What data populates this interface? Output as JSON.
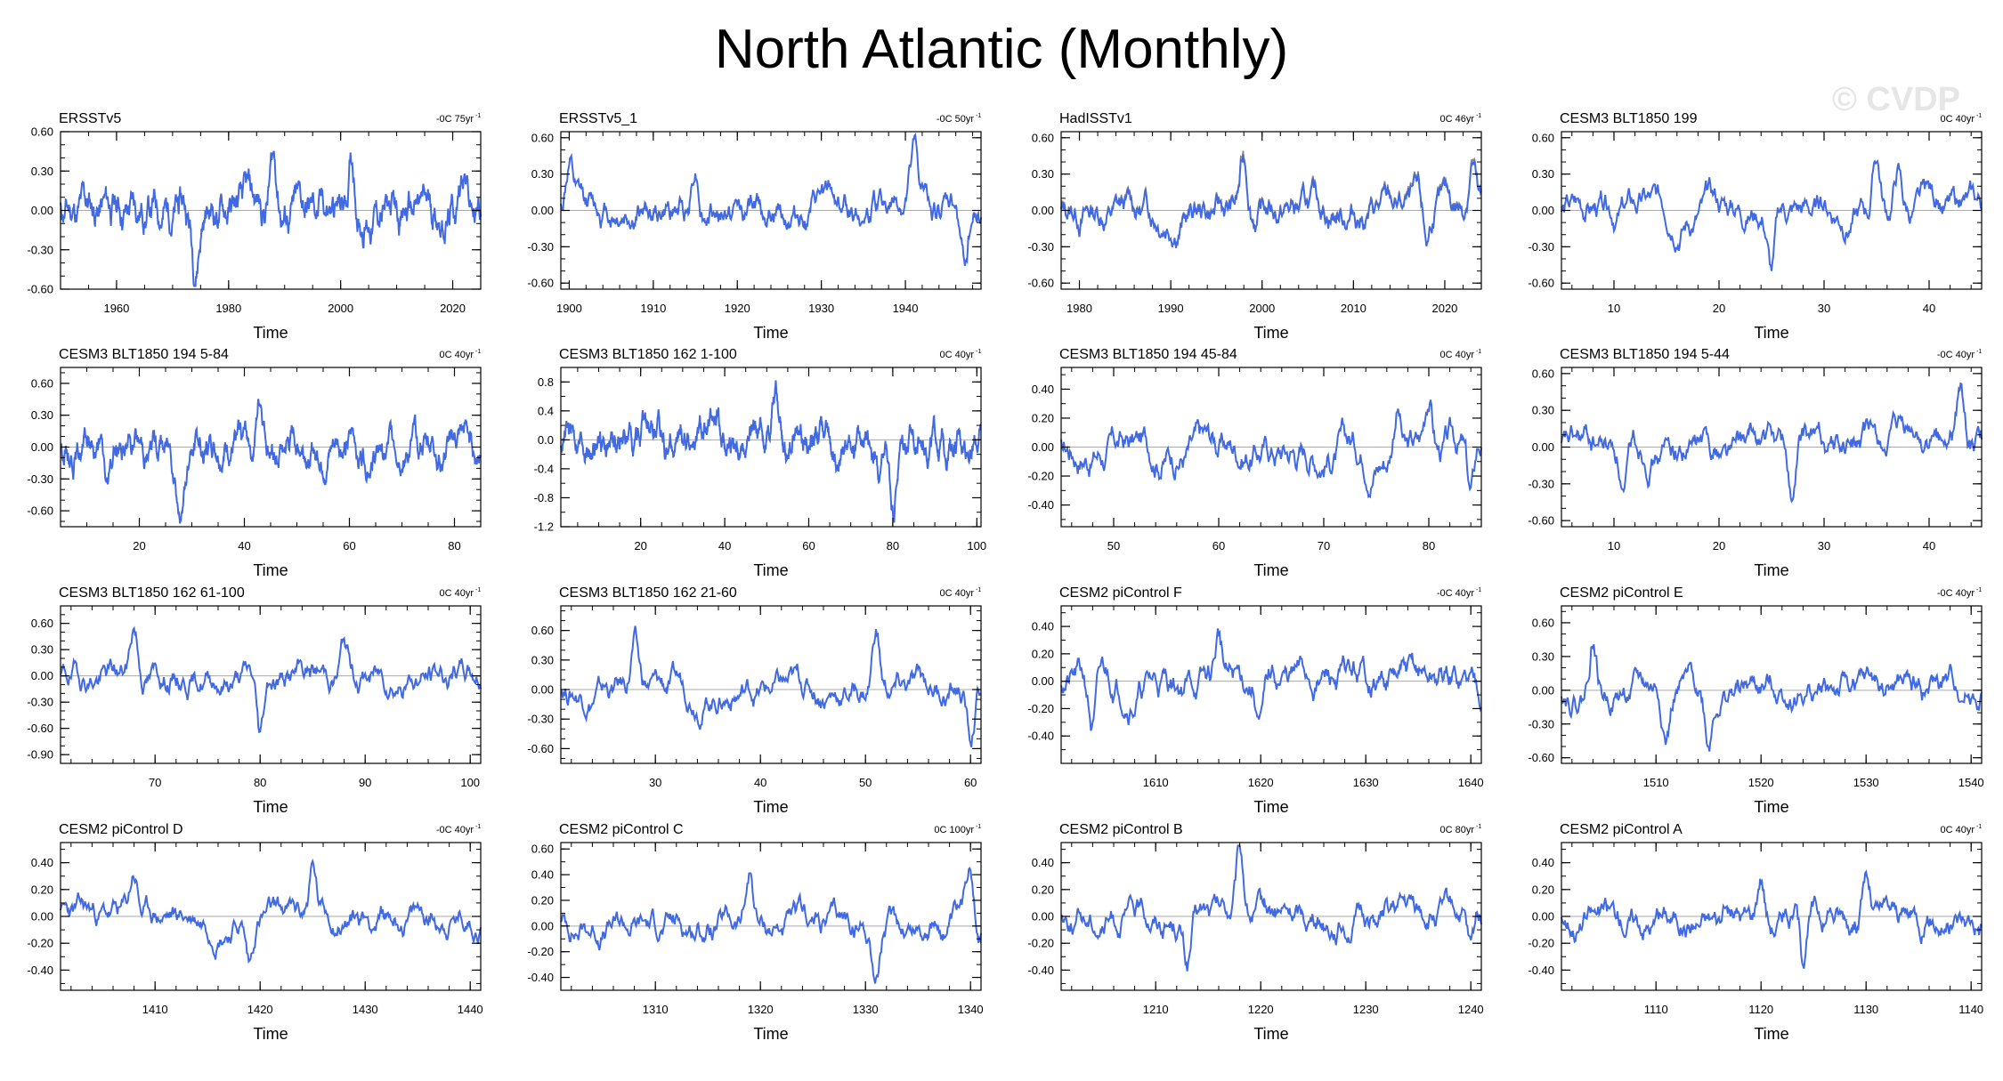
{
  "title": "North Atlantic (Monthly)",
  "watermark": "© CVDP",
  "colors": {
    "line": "#4169E1",
    "zero": "#aaaaaa",
    "overlay": "#888888"
  },
  "chart_data": [
    {
      "type": "line",
      "title": "ERSSTv5",
      "note": "-0C 75yr",
      "xlabel": "Time",
      "xlim": [
        1950,
        2025
      ],
      "xticks": [
        1960,
        1980,
        2000,
        2020
      ],
      "xminor": 5,
      "ylim": [
        -0.6,
        0.6
      ],
      "yticks": [
        "-0.60",
        "-0.30",
        "0.00",
        "0.30",
        "0.60"
      ],
      "yminor": 0.1,
      "amp": 0.2,
      "trend": 0.02,
      "spikes": [
        [
          1974,
          -0.45
        ],
        [
          1988,
          0.45
        ],
        [
          2002,
          0.45
        ],
        [
          2022,
          0.45
        ]
      ],
      "seed": 11
    },
    {
      "type": "line",
      "title": "ERSSTv5_1",
      "note": "-0C 50yr",
      "xlabel": "Time",
      "xlim": [
        1899,
        1949
      ],
      "xticks": [
        1900,
        1910,
        1920,
        1930,
        1940
      ],
      "xminor": 2,
      "ylim": [
        -0.65,
        0.65
      ],
      "yticks": [
        "-0.60",
        "-0.30",
        "0.00",
        "0.30",
        "0.60"
      ],
      "yminor": 0.1,
      "amp": 0.17,
      "trend": 0.0,
      "spikes": [
        [
          1900,
          0.45
        ],
        [
          1915,
          0.5
        ],
        [
          1941,
          0.5
        ],
        [
          1947,
          -0.5
        ]
      ],
      "seed": 12
    },
    {
      "type": "line",
      "title": "HadISSTv1",
      "note": "0C 46yr",
      "xlabel": "Time",
      "xlim": [
        1978,
        2024
      ],
      "xticks": [
        1980,
        1990,
        2000,
        2010,
        2020
      ],
      "xminor": 2,
      "ylim": [
        -0.65,
        0.65
      ],
      "yticks": [
        "-0.60",
        "-0.30",
        "0.00",
        "0.30",
        "0.60"
      ],
      "yminor": 0.1,
      "amp": 0.18,
      "trend": 0.0,
      "spikes": [
        [
          1998,
          0.45
        ],
        [
          2023,
          0.55
        ],
        [
          2018,
          -0.4
        ]
      ],
      "seed": 13,
      "overlay": true
    },
    {
      "type": "line",
      "title": "CESM3 BLT1850 199",
      "note": "0C 40yr",
      "xlabel": "Time",
      "xlim": [
        5,
        45
      ],
      "xticks": [
        10,
        20,
        30,
        40
      ],
      "xminor": 2,
      "ylim": [
        -0.65,
        0.65
      ],
      "yticks": [
        "-0.60",
        "-0.30",
        "0.00",
        "0.30",
        "0.60"
      ],
      "yminor": 0.1,
      "amp": 0.18,
      "trend": 0.0,
      "spikes": [
        [
          25,
          -0.55
        ],
        [
          35,
          0.5
        ],
        [
          37,
          0.4
        ]
      ],
      "seed": 14
    },
    {
      "type": "line",
      "title": "CESM3 BLT1850 194 5-84",
      "note": "0C 40yr",
      "xlabel": "Time",
      "xlim": [
        5,
        85
      ],
      "xticks": [
        20,
        40,
        60,
        80
      ],
      "xminor": 5,
      "ylim": [
        -0.75,
        0.75
      ],
      "yticks": [
        "-0.60",
        "-0.30",
        "0.00",
        "0.30",
        "0.60"
      ],
      "yminor": 0.1,
      "amp": 0.2,
      "trend": 0.0,
      "spikes": [
        [
          28,
          -0.65
        ],
        [
          43,
          0.5
        ],
        [
          14,
          -0.5
        ]
      ],
      "seed": 15
    },
    {
      "type": "line",
      "title": "CESM3 BLT1850 162 1-100",
      "note": "0C 40yr",
      "xlabel": "Time",
      "xlim": [
        1,
        101
      ],
      "xticks": [
        20,
        40,
        60,
        80,
        100
      ],
      "xminor": 5,
      "ylim": [
        -1.2,
        1.0
      ],
      "yticks": [
        "-1.2",
        "-0.8",
        "-0.4",
        "0.0",
        "0.4",
        "0.8"
      ],
      "yminor": 0.2,
      "amp": 0.27,
      "trend": 0.0,
      "spikes": [
        [
          52,
          0.9
        ],
        [
          80,
          -1.05
        ],
        [
          77,
          -0.7
        ]
      ],
      "seed": 16
    },
    {
      "type": "line",
      "title": "CESM3 BLT1850 194 45-84",
      "note": "0C 40yr",
      "xlabel": "Time",
      "xlim": [
        45,
        85
      ],
      "xticks": [
        50,
        60,
        70,
        80
      ],
      "xminor": 2,
      "ylim": [
        -0.55,
        0.55
      ],
      "yticks": [
        "-0.40",
        "-0.20",
        "0.00",
        "0.20",
        "0.40"
      ],
      "yminor": 0.1,
      "amp": 0.17,
      "trend": 0.0,
      "spikes": [
        [
          77,
          0.45
        ],
        [
          80,
          0.45
        ],
        [
          84,
          -0.45
        ]
      ],
      "seed": 17
    },
    {
      "type": "line",
      "title": "CESM3 BLT1850 194 5-44",
      "note": "-0C 40yr",
      "xlabel": "Time",
      "xlim": [
        5,
        45
      ],
      "xticks": [
        10,
        20,
        30,
        40
      ],
      "xminor": 2,
      "ylim": [
        -0.65,
        0.65
      ],
      "yticks": [
        "-0.60",
        "-0.30",
        "0.00",
        "0.30",
        "0.60"
      ],
      "yminor": 0.1,
      "amp": 0.18,
      "trend": 0.0,
      "spikes": [
        [
          43,
          0.5
        ],
        [
          27,
          -0.55
        ],
        [
          11,
          -0.45
        ]
      ],
      "seed": 18
    },
    {
      "type": "line",
      "title": "CESM3 BLT1850 162 61-100",
      "note": "0C 40yr",
      "xlabel": "Time",
      "xlim": [
        61,
        101
      ],
      "xticks": [
        70,
        80,
        90,
        100
      ],
      "xminor": 2,
      "ylim": [
        -1.0,
        0.8
      ],
      "yticks": [
        "-0.90",
        "-0.60",
        "-0.30",
        "0.00",
        "0.30",
        "0.60"
      ],
      "yminor": 0.1,
      "amp": 0.22,
      "trend": 0.0,
      "spikes": [
        [
          68,
          0.65
        ],
        [
          80,
          -0.85
        ],
        [
          88,
          0.45
        ]
      ],
      "seed": 19
    },
    {
      "type": "line",
      "title": "CESM3 BLT1850 162 21-60",
      "note": "0C 40yr",
      "xlabel": "Time",
      "xlim": [
        21,
        61
      ],
      "xticks": [
        30,
        40,
        50,
        60
      ],
      "xminor": 2,
      "ylim": [
        -0.75,
        0.85
      ],
      "yticks": [
        "-0.60",
        "-0.30",
        "0.00",
        "0.30",
        "0.60"
      ],
      "yminor": 0.1,
      "amp": 0.2,
      "trend": 0.0,
      "spikes": [
        [
          51,
          0.75
        ],
        [
          60,
          -0.6
        ],
        [
          28,
          0.55
        ]
      ],
      "seed": 20
    },
    {
      "type": "line",
      "title": "CESM2 piControl F",
      "note": "-0C 40yr",
      "xlabel": "Time",
      "xlim": [
        1601,
        1641
      ],
      "xticks": [
        1610,
        1620,
        1630,
        1640
      ],
      "xminor": 2,
      "ylim": [
        -0.6,
        0.55
      ],
      "yticks": [
        "-0.40",
        "-0.20",
        "0.00",
        "0.20",
        "0.40"
      ],
      "yminor": 0.1,
      "amp": 0.17,
      "trend": 0.0,
      "spikes": [
        [
          1616,
          0.38
        ],
        [
          1604,
          -0.4
        ],
        [
          1620,
          -0.35
        ]
      ],
      "seed": 21
    },
    {
      "type": "line",
      "title": "CESM2 piControl E",
      "note": "-0C 40yr",
      "xlabel": "Time",
      "xlim": [
        1501,
        1541
      ],
      "xticks": [
        1510,
        1520,
        1530,
        1540
      ],
      "xminor": 2,
      "ylim": [
        -0.65,
        0.75
      ],
      "yticks": [
        "-0.60",
        "-0.30",
        "0.00",
        "0.30",
        "0.60"
      ],
      "yminor": 0.1,
      "amp": 0.18,
      "trend": 0.0,
      "spikes": [
        [
          1504,
          0.62
        ],
        [
          1515,
          -0.5
        ],
        [
          1511,
          -0.42
        ]
      ],
      "seed": 22
    },
    {
      "type": "line",
      "title": "CESM2 piControl D",
      "note": "-0C 40yr",
      "xlabel": "Time",
      "xlim": [
        1401,
        1441
      ],
      "xticks": [
        1410,
        1420,
        1430,
        1440
      ],
      "xminor": 2,
      "ylim": [
        -0.55,
        0.55
      ],
      "yticks": [
        "-0.40",
        "-0.20",
        "0.00",
        "0.20",
        "0.40"
      ],
      "yminor": 0.1,
      "amp": 0.14,
      "trend": 0.0,
      "spikes": [
        [
          1425,
          0.42
        ],
        [
          1419,
          -0.4
        ],
        [
          1408,
          0.35
        ]
      ],
      "seed": 23
    },
    {
      "type": "line",
      "title": "CESM2 piControl C",
      "note": "0C 100yr",
      "xlabel": "Time",
      "xlim": [
        1301,
        1341
      ],
      "xticks": [
        1310,
        1320,
        1330,
        1340
      ],
      "xminor": 2,
      "ylim": [
        -0.5,
        0.65
      ],
      "yticks": [
        "-0.40",
        "-0.20",
        "0.00",
        "0.20",
        "0.40",
        "0.60"
      ],
      "yminor": 0.1,
      "amp": 0.15,
      "trend": 0.0,
      "spikes": [
        [
          1340,
          0.55
        ],
        [
          1331,
          -0.42
        ],
        [
          1319,
          0.45
        ]
      ],
      "seed": 24
    },
    {
      "type": "line",
      "title": "CESM2 piControl B",
      "note": "0C 80yr",
      "xlabel": "Time",
      "xlim": [
        1201,
        1241
      ],
      "xticks": [
        1210,
        1220,
        1230,
        1240
      ],
      "xminor": 2,
      "ylim": [
        -0.55,
        0.55
      ],
      "yticks": [
        "-0.40",
        "-0.20",
        "0.00",
        "0.20",
        "0.40"
      ],
      "yminor": 0.1,
      "amp": 0.15,
      "trend": 0.0,
      "spikes": [
        [
          1218,
          0.5
        ],
        [
          1213,
          -0.38
        ],
        [
          1240,
          -0.38
        ]
      ],
      "seed": 25
    },
    {
      "type": "line",
      "title": "CESM2 piControl A",
      "note": "0C 40yr",
      "xlabel": "Time",
      "xlim": [
        1101,
        1141
      ],
      "xticks": [
        1110,
        1120,
        1130,
        1140
      ],
      "xminor": 2,
      "ylim": [
        -0.55,
        0.55
      ],
      "yticks": [
        "-0.40",
        "-0.20",
        "0.00",
        "0.20",
        "0.40"
      ],
      "yminor": 0.1,
      "amp": 0.15,
      "trend": 0.0,
      "spikes": [
        [
          1120,
          0.42
        ],
        [
          1130,
          0.4
        ],
        [
          1124,
          -0.4
        ]
      ],
      "seed": 26
    }
  ]
}
